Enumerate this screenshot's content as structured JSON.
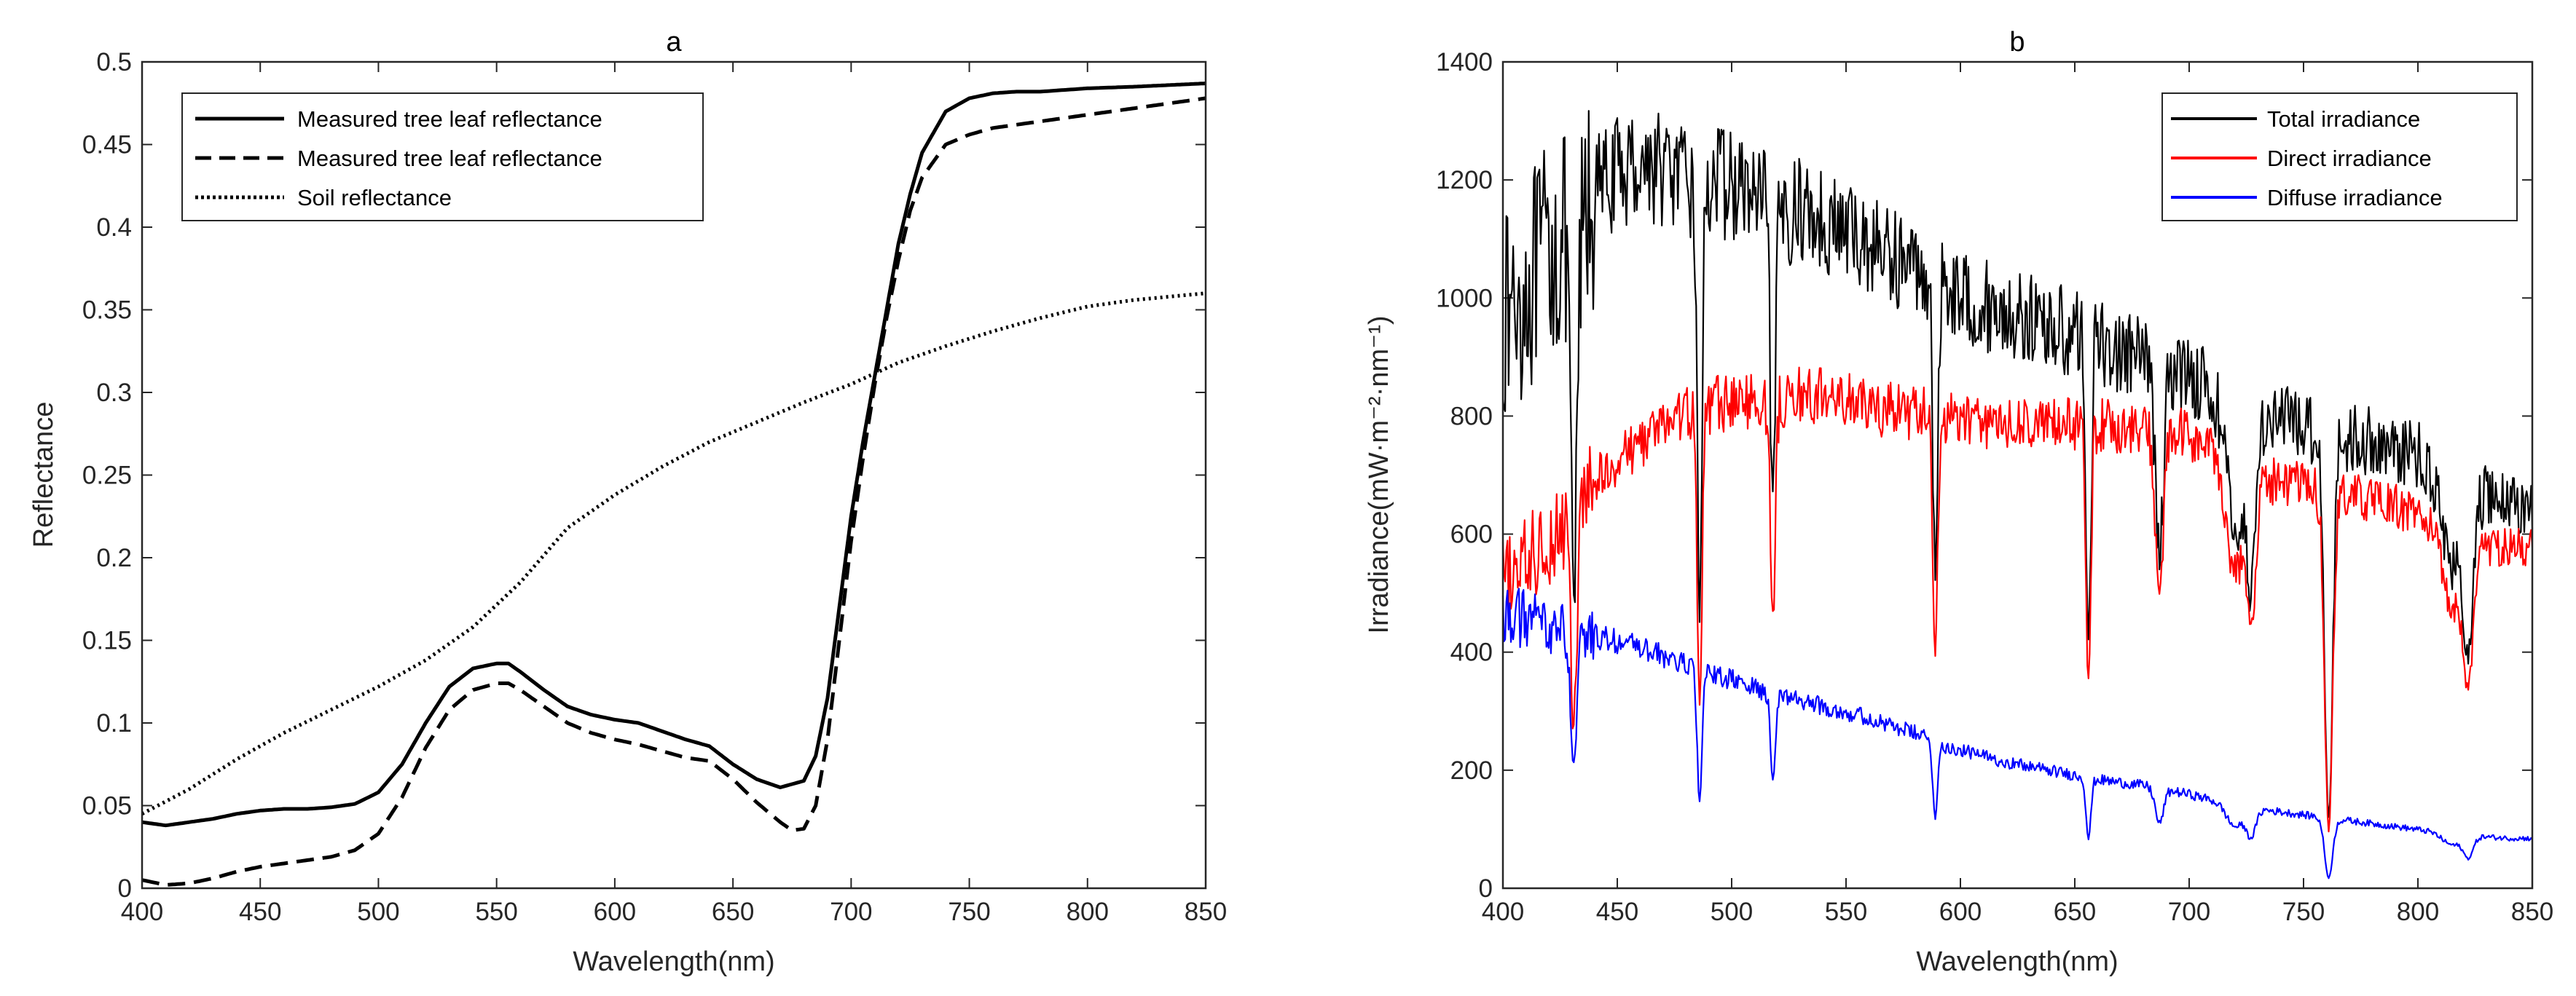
{
  "chart_data": [
    {
      "type": "line",
      "panel": "a",
      "title": "a",
      "xlabel": "Wavelength(nm)",
      "ylabel": "Reflectance",
      "xlim": [
        400,
        850
      ],
      "ylim": [
        0,
        0.5
      ],
      "xticks": [
        "400",
        "450",
        "500",
        "550",
        "600",
        "650",
        "700",
        "750",
        "800",
        "850"
      ],
      "yticks": [
        "0",
        "0.05",
        "0.1",
        "0.15",
        "0.2",
        "0.25",
        "0.3",
        "0.35",
        "0.4",
        "0.45",
        "0.5"
      ],
      "legend_position": "top-left",
      "series": [
        {
          "name": "Measured tree leaf reflectance",
          "style": "solid",
          "color": "#000000",
          "x": [
            400,
            410,
            420,
            430,
            440,
            450,
            460,
            470,
            480,
            490,
            500,
            510,
            520,
            530,
            540,
            550,
            555,
            560,
            570,
            580,
            590,
            600,
            610,
            620,
            630,
            640,
            650,
            660,
            670,
            680,
            685,
            690,
            695,
            700,
            705,
            710,
            715,
            720,
            725,
            730,
            740,
            750,
            760,
            770,
            780,
            800,
            820,
            850
          ],
          "y": [
            0.04,
            0.038,
            0.04,
            0.042,
            0.045,
            0.047,
            0.048,
            0.048,
            0.049,
            0.051,
            0.058,
            0.075,
            0.1,
            0.122,
            0.133,
            0.136,
            0.136,
            0.131,
            0.12,
            0.11,
            0.105,
            0.102,
            0.1,
            0.095,
            0.09,
            0.086,
            0.075,
            0.066,
            0.061,
            0.065,
            0.08,
            0.115,
            0.17,
            0.225,
            0.27,
            0.31,
            0.35,
            0.39,
            0.42,
            0.445,
            0.47,
            0.478,
            0.481,
            0.482,
            0.482,
            0.484,
            0.485,
            0.487
          ]
        },
        {
          "name": "Measured tree leaf reflectance",
          "style": "dashed",
          "color": "#000000",
          "x": [
            400,
            410,
            420,
            430,
            440,
            450,
            460,
            470,
            480,
            490,
            500,
            510,
            520,
            530,
            540,
            550,
            555,
            560,
            570,
            580,
            590,
            600,
            610,
            620,
            630,
            640,
            650,
            660,
            670,
            675,
            680,
            685,
            690,
            695,
            700,
            705,
            710,
            715,
            720,
            725,
            730,
            740,
            750,
            760,
            780,
            800,
            820,
            850
          ],
          "y": [
            0.005,
            0.002,
            0.003,
            0.006,
            0.01,
            0.013,
            0.015,
            0.017,
            0.019,
            0.023,
            0.033,
            0.055,
            0.085,
            0.108,
            0.12,
            0.124,
            0.124,
            0.12,
            0.11,
            0.1,
            0.094,
            0.09,
            0.087,
            0.083,
            0.079,
            0.077,
            0.066,
            0.052,
            0.04,
            0.035,
            0.036,
            0.05,
            0.09,
            0.15,
            0.21,
            0.26,
            0.305,
            0.345,
            0.38,
            0.41,
            0.43,
            0.45,
            0.456,
            0.46,
            0.464,
            0.468,
            0.472,
            0.478
          ]
        },
        {
          "name": "Soil reflectance",
          "style": "dotted",
          "color": "#000000",
          "x": [
            400,
            420,
            440,
            460,
            480,
            500,
            520,
            540,
            560,
            580,
            600,
            620,
            640,
            660,
            680,
            700,
            720,
            740,
            760,
            780,
            800,
            820,
            850
          ],
          "y": [
            0.045,
            0.06,
            0.078,
            0.094,
            0.108,
            0.122,
            0.138,
            0.158,
            0.185,
            0.218,
            0.238,
            0.255,
            0.27,
            0.282,
            0.294,
            0.305,
            0.318,
            0.328,
            0.337,
            0.345,
            0.352,
            0.356,
            0.36
          ]
        }
      ]
    },
    {
      "type": "line",
      "panel": "b",
      "title": "b",
      "xlabel": "Wavelength(nm)",
      "ylabel": "Irradiance(mW·m⁻²·nm⁻¹)",
      "xlim": [
        400,
        850
      ],
      "ylim": [
        0,
        1400
      ],
      "xticks": [
        "400",
        "450",
        "500",
        "550",
        "600",
        "650",
        "700",
        "750",
        "800",
        "850"
      ],
      "yticks": [
        "0",
        "200",
        "400",
        "600",
        "800",
        "1000",
        "1200",
        "1400"
      ],
      "legend_position": "top-right",
      "series": [
        {
          "name": "Total irradiance",
          "color": "#000000",
          "x": [
            400,
            410,
            420,
            430,
            440,
            450,
            460,
            470,
            480,
            490,
            500,
            510,
            520,
            530,
            540,
            550,
            560,
            570,
            580,
            590,
            600,
            620,
            640,
            660,
            680,
            700,
            720,
            740,
            760,
            780,
            800,
            820,
            840,
            850
          ],
          "y": [
            980,
            1030,
            1100,
            1120,
            1190,
            1220,
            1240,
            1230,
            1200,
            1210,
            1200,
            1180,
            1150,
            1160,
            1140,
            1120,
            1100,
            1080,
            1060,
            1050,
            1010,
            980,
            960,
            930,
            900,
            880,
            820,
            800,
            780,
            760,
            740,
            680,
            660,
            650
          ]
        },
        {
          "name": "Direct irradiance",
          "color": "#ff0000",
          "x": [
            400,
            410,
            420,
            430,
            440,
            450,
            460,
            470,
            480,
            490,
            500,
            510,
            520,
            530,
            540,
            550,
            560,
            570,
            580,
            590,
            600,
            620,
            640,
            660,
            680,
            700,
            720,
            740,
            760,
            780,
            800,
            820,
            840,
            850
          ],
          "y": [
            530,
            560,
            600,
            640,
            690,
            730,
            760,
            790,
            810,
            820,
            830,
            830,
            830,
            840,
            840,
            830,
            820,
            815,
            810,
            800,
            800,
            790,
            790,
            790,
            780,
            770,
            720,
            690,
            680,
            660,
            640,
            590,
            580,
            580
          ]
        },
        {
          "name": "Diffuse irradiance",
          "color": "#0000ff",
          "x": [
            400,
            410,
            420,
            430,
            440,
            450,
            460,
            470,
            480,
            490,
            500,
            510,
            520,
            530,
            540,
            550,
            560,
            570,
            580,
            590,
            600,
            620,
            640,
            660,
            680,
            700,
            720,
            740,
            760,
            780,
            800,
            820,
            840,
            850
          ],
          "y": [
            470,
            460,
            450,
            440,
            430,
            420,
            410,
            395,
            380,
            365,
            355,
            340,
            330,
            320,
            310,
            300,
            290,
            275,
            265,
            245,
            235,
            215,
            200,
            185,
            175,
            160,
            140,
            130,
            120,
            110,
            100,
            90,
            85,
            85
          ]
        }
      ]
    }
  ]
}
